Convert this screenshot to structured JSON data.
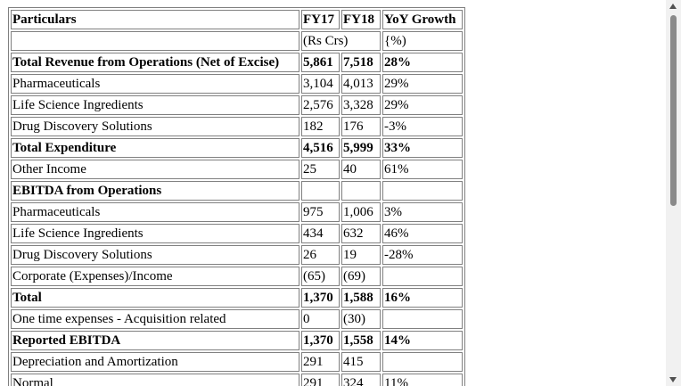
{
  "table": {
    "header": {
      "particulars": "Particulars",
      "fy17": "FY17",
      "fy18": "FY18",
      "yoy": "YoY Growth"
    },
    "units": {
      "label": "",
      "amount_unit": "(Rs Crs)",
      "growth_unit": "{%)"
    },
    "rows": [
      {
        "label": "Total Revenue from Operations (Net of Excise)",
        "fy17": "5,861",
        "fy18": "7,518",
        "yoy": "28%",
        "bold": true
      },
      {
        "label": "Pharmaceuticals",
        "fy17": "3,104",
        "fy18": "4,013",
        "yoy": "29%",
        "bold": false
      },
      {
        "label": "Life Science Ingredients",
        "fy17": "2,576",
        "fy18": "3,328",
        "yoy": "29%",
        "bold": false
      },
      {
        "label": "Drug Discovery Solutions",
        "fy17": "182",
        "fy18": "176",
        "yoy": "-3%",
        "bold": false
      },
      {
        "label": "Total Expenditure",
        "fy17": "4,516",
        "fy18": "5,999",
        "yoy": "33%",
        "bold": true
      },
      {
        "label": "Other Income",
        "fy17": "25",
        "fy18": "40",
        "yoy": "61%",
        "bold": false
      },
      {
        "label": "EBITDA from Operations",
        "fy17": "",
        "fy18": "",
        "yoy": "",
        "bold": true
      },
      {
        "label": "Pharmaceuticals",
        "fy17": "975",
        "fy18": "1,006",
        "yoy": "3%",
        "bold": false
      },
      {
        "label": "Life Science Ingredients",
        "fy17": "434",
        "fy18": "632",
        "yoy": "46%",
        "bold": false
      },
      {
        "label": "Drug Discovery Solutions",
        "fy17": "26",
        "fy18": "19",
        "yoy": "-28%",
        "bold": false
      },
      {
        "label": "Corporate (Expenses)/Income",
        "fy17": "(65)",
        "fy18": "(69)",
        "yoy": "",
        "bold": false
      },
      {
        "label": "Total",
        "fy17": "1,370",
        "fy18": "1,588",
        "yoy": "16%",
        "bold": true
      },
      {
        "label": "One time expenses - Acquisition related",
        "fy17": "0",
        "fy18": "(30)",
        "yoy": "",
        "bold": false
      },
      {
        "label": "Reported EBITDA",
        "fy17": "1,370",
        "fy18": "1,558",
        "yoy": "14%",
        "bold": true
      },
      {
        "label": "Depreciation and Amortization",
        "fy17": "291",
        "fy18": "415",
        "yoy": "",
        "bold": false
      },
      {
        "label": "Normal",
        "fy17": "291",
        "fy18": "324",
        "yoy": "11%",
        "bold": false
      }
    ]
  },
  "scrollbar": {
    "up_icon": "arrow-up-icon",
    "down_icon": "arrow-down-icon"
  }
}
